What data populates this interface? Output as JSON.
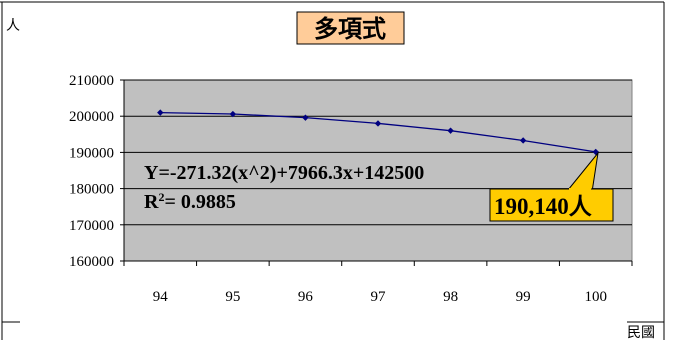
{
  "chart_data": {
    "type": "line",
    "title": "多項式",
    "ylabel": "人",
    "xlabel": "民國",
    "categories": [
      "94",
      "95",
      "96",
      "97",
      "98",
      "99",
      "100"
    ],
    "series": [
      {
        "values": [
          201000,
          200600,
          199600,
          198000,
          196000,
          193300,
          190140
        ]
      }
    ],
    "y_ticks": [
      "210000",
      "200000",
      "190000",
      "180000",
      "170000",
      "160000"
    ],
    "ylim": [
      160000,
      210000
    ],
    "grid": true,
    "trendline": {
      "equation": "Y=-271.32(x^2)+7966.3x+142500",
      "r2_prefix": "R",
      "r2_sup": "2",
      "r2_value": "= 0.9885"
    },
    "callout": "190,140人",
    "colors": {
      "plot_bg": "#c0c0c0",
      "line": "#000080",
      "title_bg": "#ffcc99",
      "callout_bg": "#ffcc00"
    }
  }
}
